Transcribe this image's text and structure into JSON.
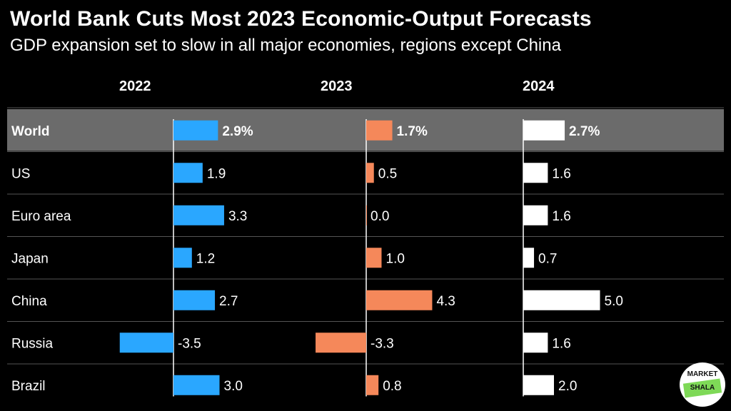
{
  "title": "World Bank Cuts Most 2023 Economic-Output Forecasts",
  "subtitle": "GDP expansion set to slow in all major economies, regions except China",
  "logo": {
    "line1": "MARKET",
    "line2": "SHALA"
  },
  "colors": {
    "background": "#000000",
    "highlight_row": "#6b6b6b",
    "separator": "#555555",
    "axis": "#ffffff",
    "series_2022": "#2aa7ff",
    "series_2023": "#f5885a",
    "series_2024": "#ffffff"
  },
  "chart_data": {
    "type": "bar",
    "orientation": "horizontal",
    "layout": "small-multiples",
    "categories": [
      "World",
      "US",
      "Euro area",
      "Japan",
      "China",
      "Russia",
      "Brazil"
    ],
    "highlight_category": "World",
    "series": [
      {
        "name": "2022",
        "values": [
          2.9,
          1.9,
          3.3,
          1.2,
          2.7,
          -3.5,
          3.0
        ],
        "labels": [
          "2.9%",
          "1.9",
          "3.3",
          "1.2",
          "2.7",
          "-3.5",
          "3.0"
        ]
      },
      {
        "name": "2023",
        "values": [
          1.7,
          0.5,
          0.0,
          1.0,
          4.3,
          -3.3,
          0.8
        ],
        "labels": [
          "1.7%",
          "0.5",
          "0.0",
          "1.0",
          "4.3",
          "-3.3",
          "0.8"
        ]
      },
      {
        "name": "2024",
        "values": [
          2.7,
          1.6,
          1.6,
          0.7,
          5.0,
          1.6,
          2.0
        ],
        "labels": [
          "2.7%",
          "1.6",
          "1.6",
          "0.7",
          "5.0",
          "1.6",
          "2.0"
        ]
      }
    ]
  }
}
